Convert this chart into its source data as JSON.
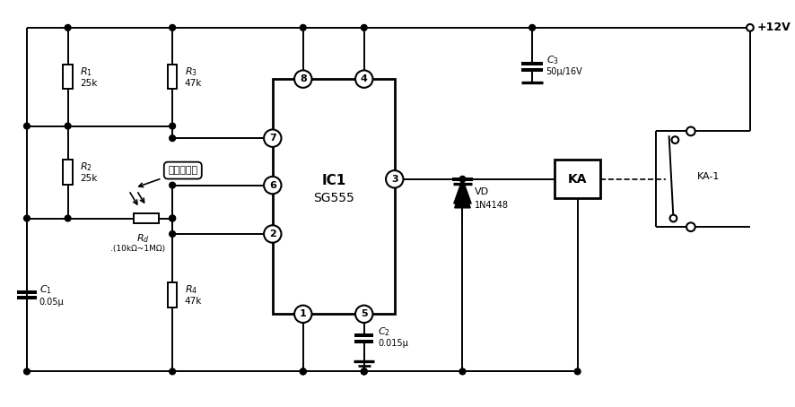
{
  "bg_color": "#ffffff",
  "lc": "#000000",
  "lw": 1.4,
  "figsize": [
    8.86,
    4.54
  ],
  "dpi": 100,
  "components": {
    "R1": {
      "label": "R",
      "sub": "1",
      "val": "25k"
    },
    "R2": {
      "label": "R",
      "sub": "2",
      "val": "25k"
    },
    "R3": {
      "label": "R",
      "sub": "3",
      "val": "47k"
    },
    "R4": {
      "label": "R",
      "sub": "4",
      "val": "47k"
    },
    "Rd": {
      "label": "R",
      "sub": "d",
      "val": ""
    },
    "C1": {
      "label": "C",
      "sub": "1",
      "val": "0.05μ"
    },
    "C2": {
      "label": "C",
      "sub": "2",
      "val": "0.015μ"
    },
    "C3": {
      "label": "C",
      "sub": "3",
      "val": "50μ/16V"
    },
    "VD": {
      "label": "VD",
      "val": "1N4148"
    },
    "KA": {
      "label": "KA"
    },
    "IC": {
      "label": "IC1",
      "sub_label": "SG555"
    },
    "power": "+12V",
    "relay_switch": "KA-1",
    "rd_note": ".(10kΩ~1MΩ)",
    "photo_label": "光敏电阵器"
  }
}
